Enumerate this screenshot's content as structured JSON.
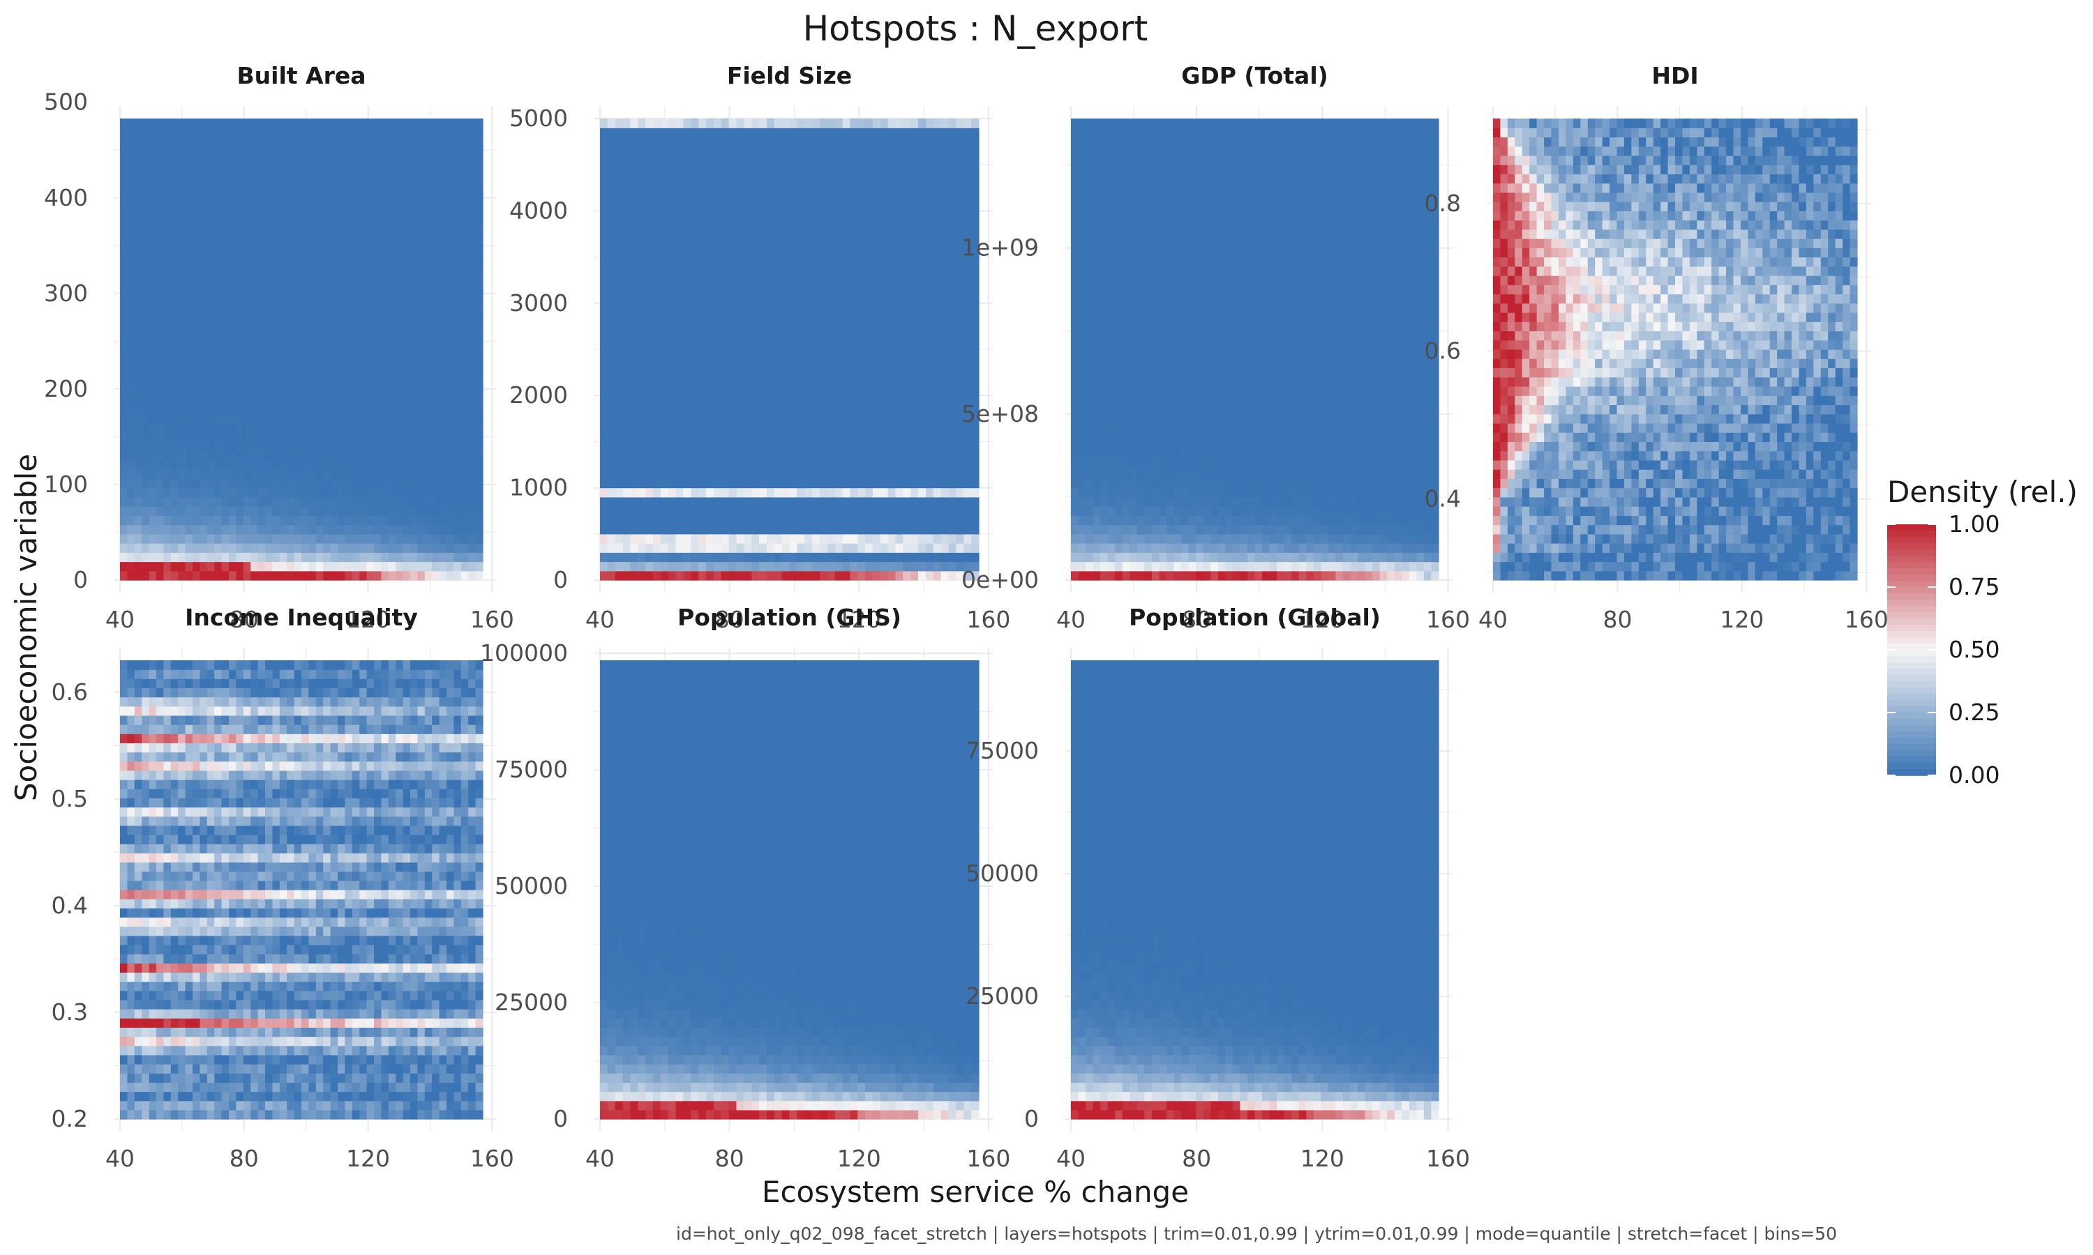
{
  "title": "Hotspots : N_export",
  "xlabel": "Ecosystem service % change",
  "ylabel": "Socioeconomic variable",
  "caption": "id=hot_only_q02_098_facet_stretch | layers=hotspots | trim=0.01,0.99 | ytrim=0.01,0.99 | mode=quantile | stretch=facet | bins=50",
  "legend": {
    "title": "Density (rel.)",
    "ticks": [
      1.0,
      0.75,
      0.5,
      0.25,
      0.0
    ],
    "tick_labels": [
      "1.00",
      "0.75",
      "0.50",
      "0.25",
      "0.00"
    ],
    "colors": {
      "low": "#3a74b4",
      "mid": "#f5f5f5",
      "high": "#c0232f"
    }
  },
  "chart_data": [
    {
      "type": "heatmap",
      "name": "Built Area",
      "xlim": [
        40,
        157
      ],
      "x_ticks": [
        40,
        80,
        120,
        160
      ],
      "x_tick_labels": [
        "40",
        "80",
        "120",
        "160"
      ],
      "ylim": [
        0,
        483
      ],
      "y_ticks": [
        0,
        100,
        200,
        300,
        400,
        500
      ],
      "y_tick_labels": [
        "0",
        "100",
        "200",
        "300",
        "400",
        "500"
      ],
      "pattern": "bottom",
      "band_hi": 18,
      "band_lo": 8,
      "fade_height": 55
    },
    {
      "type": "heatmap",
      "name": "Field Size",
      "xlim": [
        40,
        157
      ],
      "x_ticks": [
        40,
        80,
        120,
        160
      ],
      "x_tick_labels": [
        "40",
        "80",
        "120",
        "160"
      ],
      "ylim": [
        0,
        5000
      ],
      "y_ticks": [
        0,
        1000,
        2000,
        3000,
        4000,
        5000
      ],
      "y_tick_labels": [
        "0",
        "1000",
        "2000",
        "3000",
        "4000",
        "5000"
      ],
      "pattern": "bottom",
      "band_hi": 100,
      "band_lo": 100,
      "fade_height": 120,
      "stripes": [
        950,
        400,
        4950
      ]
    },
    {
      "type": "heatmap",
      "name": "GDP (Total)",
      "xlim": [
        40,
        157
      ],
      "x_ticks": [
        40,
        80,
        120,
        160
      ],
      "x_tick_labels": [
        "40",
        "80",
        "120",
        "160"
      ],
      "ylim": [
        0,
        1390000000
      ],
      "y_ticks": [
        0,
        500000000,
        1000000000
      ],
      "y_tick_labels": [
        "0e+00",
        "5e+08",
        "1e+09"
      ],
      "pattern": "bottom",
      "band_hi": 30000000,
      "band_lo": 30000000,
      "fade_height": 130000000
    },
    {
      "type": "heatmap",
      "name": "HDI",
      "xlim": [
        40,
        157
      ],
      "x_ticks": [
        40,
        80,
        120,
        160
      ],
      "x_tick_labels": [
        "40",
        "80",
        "120",
        "160"
      ],
      "ylim": [
        0.29,
        0.915
      ],
      "y_ticks": [
        0.4,
        0.6,
        0.8
      ],
      "y_tick_labels": [
        "0.4",
        "0.6",
        "0.8"
      ],
      "pattern": "hdi"
    },
    {
      "type": "heatmap",
      "name": "Income Inequality",
      "xlim": [
        40,
        157
      ],
      "x_ticks": [
        40,
        80,
        120,
        160
      ],
      "x_tick_labels": [
        "40",
        "80",
        "120",
        "160"
      ],
      "ylim": [
        0.2,
        0.63
      ],
      "y_ticks": [
        0.2,
        0.3,
        0.4,
        0.5,
        0.6
      ],
      "y_tick_labels": [
        "0.2",
        "0.3",
        "0.4",
        "0.5",
        "0.6"
      ],
      "pattern": "income"
    },
    {
      "type": "heatmap",
      "name": "Population (GHS)",
      "xlim": [
        40,
        157
      ],
      "x_ticks": [
        40,
        80,
        120,
        160
      ],
      "x_tick_labels": [
        "40",
        "80",
        "120",
        "160"
      ],
      "ylim": [
        0,
        98500
      ],
      "y_ticks": [
        0,
        25000,
        50000,
        75000,
        100000
      ],
      "y_tick_labels": [
        "0",
        "25000",
        "50000",
        "75000",
        "100000"
      ],
      "pattern": "bottom",
      "band_hi": 3500,
      "band_lo": 2000,
      "fade_height": 12000
    },
    {
      "type": "heatmap",
      "name": "Population (Global)",
      "xlim": [
        40,
        157
      ],
      "x_ticks": [
        40,
        80,
        120,
        160
      ],
      "x_tick_labels": [
        "40",
        "80",
        "120",
        "160"
      ],
      "ylim": [
        0,
        93500
      ],
      "y_ticks": [
        0,
        25000,
        50000,
        75000
      ],
      "y_tick_labels": [
        "0",
        "25000",
        "50000",
        "75000"
      ],
      "pattern": "bottom",
      "band_hi": 3500,
      "band_lo": 2000,
      "fade_height": 12000
    }
  ]
}
